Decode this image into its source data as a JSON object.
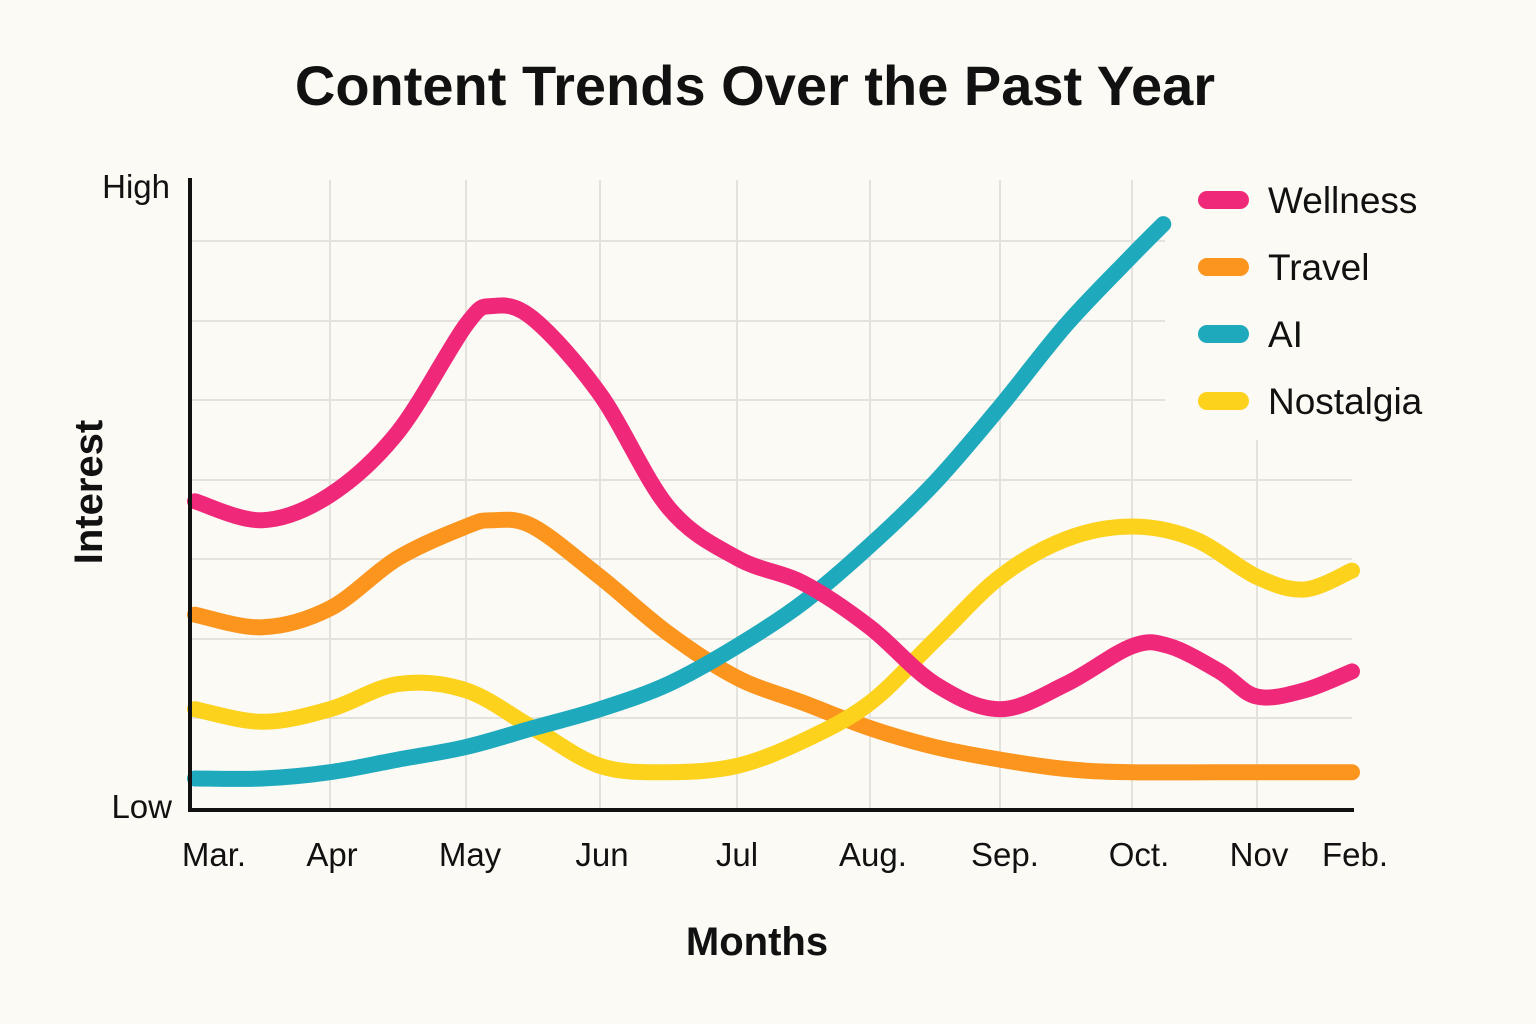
{
  "chart_data": {
    "type": "line",
    "title": "Content Trends Over the Past Year",
    "xlabel": "Months",
    "ylabel": "Interest",
    "y_tick_labels": {
      "high": "High",
      "low": "Low"
    },
    "ylim": [
      0,
      100
    ],
    "categories": [
      "Mar.",
      "Apr",
      "May",
      "Jun",
      "Jul",
      "Aug.",
      "Sep.",
      "Oct.",
      "Nov",
      "Feb."
    ],
    "grid": true,
    "legend_position": "top-right",
    "series": [
      {
        "name": "Wellness",
        "color": "#f0287a",
        "points": [
          {
            "x": 0,
            "y": 49
          },
          {
            "x": 0.5,
            "y": 46
          },
          {
            "x": 1.0,
            "y": 50
          },
          {
            "x": 1.5,
            "y": 60
          },
          {
            "x": 2.0,
            "y": 77
          },
          {
            "x": 2.2,
            "y": 80
          },
          {
            "x": 2.5,
            "y": 78
          },
          {
            "x": 3.0,
            "y": 66
          },
          {
            "x": 3.5,
            "y": 48
          },
          {
            "x": 4.0,
            "y": 40
          },
          {
            "x": 4.5,
            "y": 36
          },
          {
            "x": 5.0,
            "y": 29
          },
          {
            "x": 5.5,
            "y": 20
          },
          {
            "x": 6.0,
            "y": 16
          },
          {
            "x": 6.5,
            "y": 20
          },
          {
            "x": 7.0,
            "y": 26
          },
          {
            "x": 7.3,
            "y": 26
          },
          {
            "x": 7.7,
            "y": 22
          },
          {
            "x": 8.0,
            "y": 18
          },
          {
            "x": 8.5,
            "y": 19
          },
          {
            "x": 9.0,
            "y": 22
          }
        ]
      },
      {
        "name": "Travel",
        "color": "#fb951e",
        "points": [
          {
            "x": 0,
            "y": 31
          },
          {
            "x": 0.5,
            "y": 29
          },
          {
            "x": 1.0,
            "y": 32
          },
          {
            "x": 1.5,
            "y": 40
          },
          {
            "x": 2.0,
            "y": 45
          },
          {
            "x": 2.2,
            "y": 46
          },
          {
            "x": 2.5,
            "y": 45
          },
          {
            "x": 3.0,
            "y": 37
          },
          {
            "x": 3.5,
            "y": 28
          },
          {
            "x": 4.0,
            "y": 21
          },
          {
            "x": 4.5,
            "y": 17
          },
          {
            "x": 5.0,
            "y": 13
          },
          {
            "x": 5.5,
            "y": 10
          },
          {
            "x": 6.0,
            "y": 8
          },
          {
            "x": 6.5,
            "y": 6.5
          },
          {
            "x": 7.0,
            "y": 6
          },
          {
            "x": 8.0,
            "y": 6
          },
          {
            "x": 9.0,
            "y": 6
          }
        ]
      },
      {
        "name": "AI",
        "color": "#1ea9bd",
        "points": [
          {
            "x": 0,
            "y": 5
          },
          {
            "x": 0.5,
            "y": 5
          },
          {
            "x": 1.0,
            "y": 6
          },
          {
            "x": 1.5,
            "y": 8
          },
          {
            "x": 2.0,
            "y": 10
          },
          {
            "x": 2.5,
            "y": 13
          },
          {
            "x": 3.0,
            "y": 16
          },
          {
            "x": 3.5,
            "y": 20
          },
          {
            "x": 4.0,
            "y": 26
          },
          {
            "x": 4.5,
            "y": 33
          },
          {
            "x": 5.0,
            "y": 42
          },
          {
            "x": 5.5,
            "y": 52
          },
          {
            "x": 6.0,
            "y": 64
          },
          {
            "x": 6.5,
            "y": 77
          },
          {
            "x": 7.0,
            "y": 88
          },
          {
            "x": 7.25,
            "y": 93
          }
        ]
      },
      {
        "name": "Nostalgia",
        "color": "#fcd21d",
        "points": [
          {
            "x": 0,
            "y": 16
          },
          {
            "x": 0.5,
            "y": 14
          },
          {
            "x": 1.0,
            "y": 16
          },
          {
            "x": 1.5,
            "y": 20
          },
          {
            "x": 2.0,
            "y": 19
          },
          {
            "x": 2.5,
            "y": 13
          },
          {
            "x": 3.0,
            "y": 7
          },
          {
            "x": 3.5,
            "y": 6
          },
          {
            "x": 4.0,
            "y": 7
          },
          {
            "x": 4.5,
            "y": 11
          },
          {
            "x": 5.0,
            "y": 17
          },
          {
            "x": 5.5,
            "y": 27
          },
          {
            "x": 6.0,
            "y": 37
          },
          {
            "x": 6.5,
            "y": 43
          },
          {
            "x": 7.0,
            "y": 45
          },
          {
            "x": 7.5,
            "y": 43
          },
          {
            "x": 8.0,
            "y": 37
          },
          {
            "x": 8.5,
            "y": 35
          },
          {
            "x": 9.0,
            "y": 38
          }
        ]
      }
    ]
  }
}
